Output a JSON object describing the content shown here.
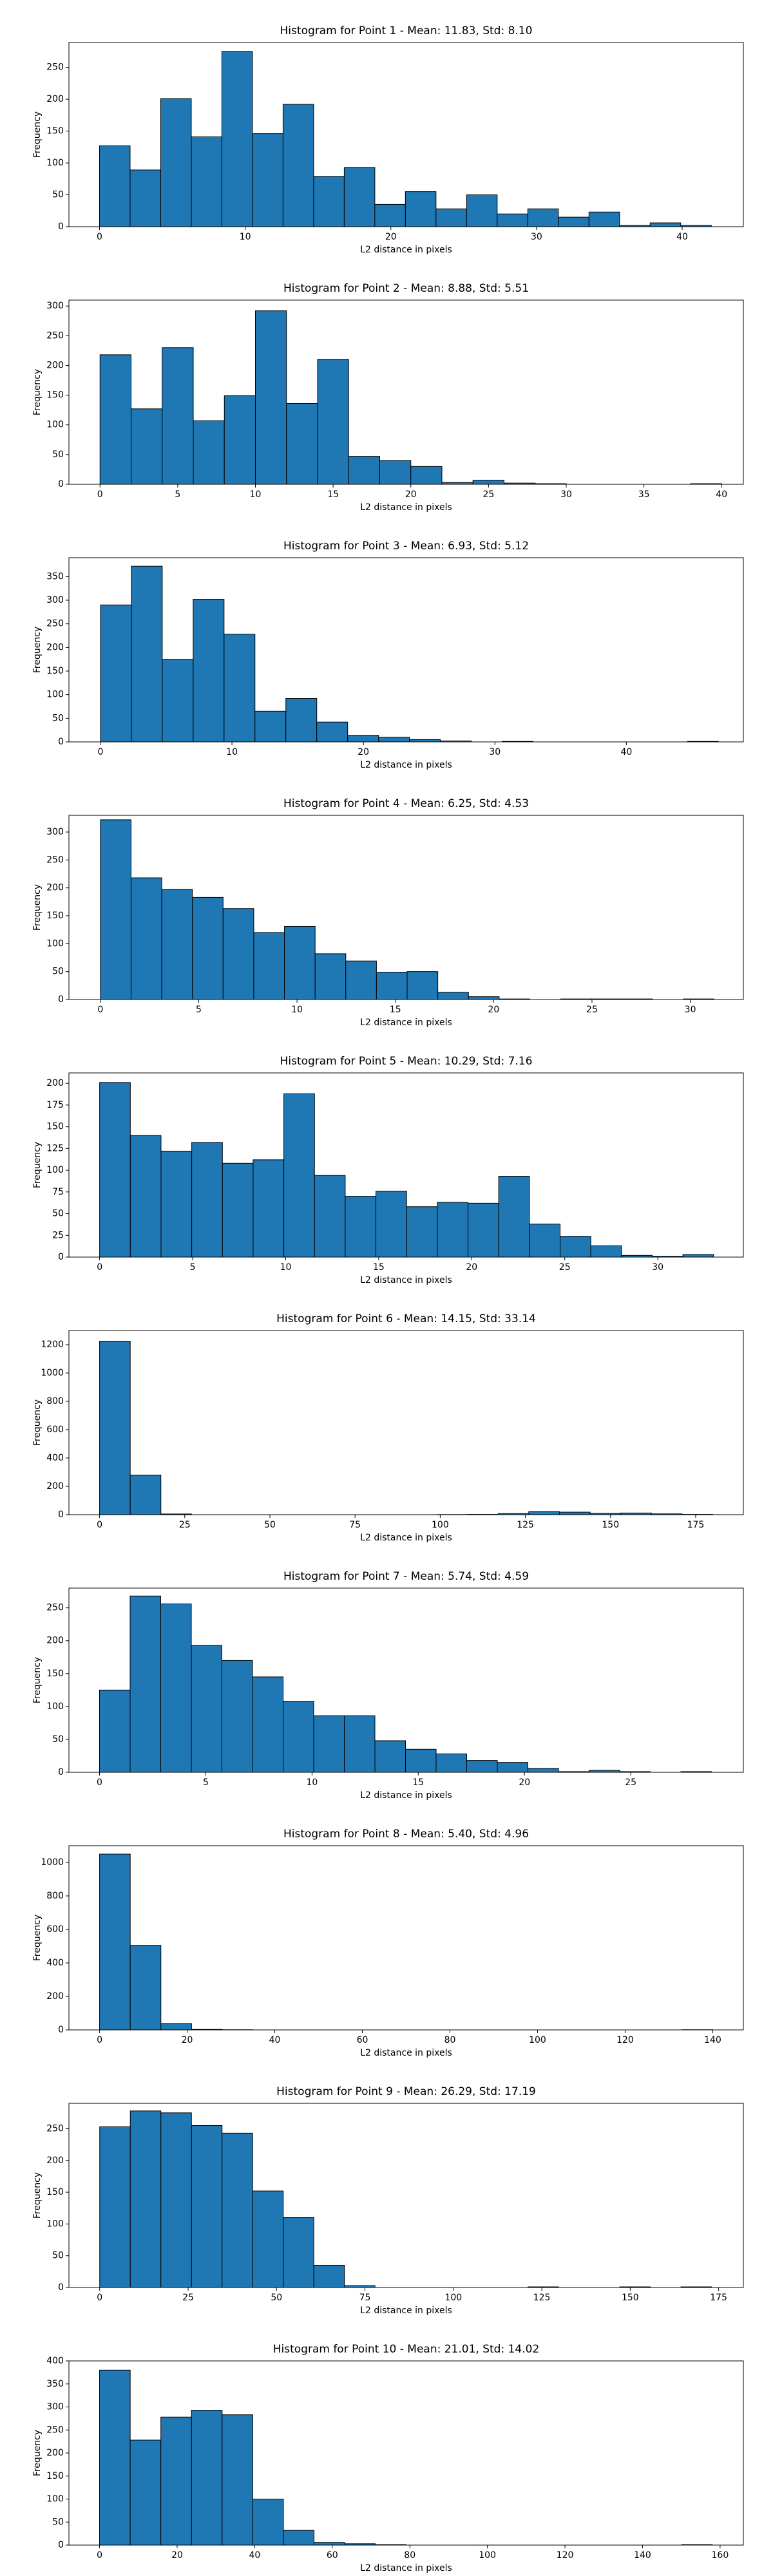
{
  "chart_data": [
    {
      "type": "histogram",
      "title": "Histogram for Point 1 - Mean: 11.83, Std: 8.10",
      "xlabel": "L2 distance in pixels",
      "ylabel": "Frequency",
      "color": "#1f77b4",
      "bins": [
        0,
        2.1,
        4.2,
        6.3,
        8.4,
        10.5,
        12.6,
        14.7,
        16.8,
        18.9,
        21,
        23.1,
        25.2,
        27.3,
        29.4,
        31.5,
        33.6,
        35.7,
        37.8,
        39.9,
        42
      ],
      "values": [
        127,
        89,
        201,
        141,
        275,
        146,
        192,
        79,
        93,
        35,
        55,
        28,
        50,
        20,
        28,
        15,
        23,
        2,
        6,
        2
      ],
      "xlim": [
        -2.1,
        44.2
      ],
      "ylim": [
        0,
        289
      ],
      "xticks": [
        0,
        10,
        20,
        30,
        40
      ],
      "yticks": [
        0,
        50,
        100,
        150,
        200,
        250
      ]
    },
    {
      "type": "histogram",
      "title": "Histogram for Point 2 - Mean: 8.88, Std: 5.51",
      "xlabel": "L2 distance in pixels",
      "ylabel": "Frequency",
      "color": "#1f77b4",
      "bins": [
        0,
        2,
        4,
        6,
        8,
        10,
        12,
        14,
        16,
        18,
        20,
        22,
        24,
        26,
        28,
        30,
        32,
        34,
        36,
        38,
        40
      ],
      "values": [
        218,
        127,
        230,
        107,
        149,
        292,
        136,
        210,
        47,
        40,
        30,
        3,
        7,
        2,
        1,
        0,
        0,
        0,
        0,
        1
      ],
      "xlim": [
        -2,
        41.4
      ],
      "ylim": [
        0,
        310
      ],
      "xticks": [
        0,
        5,
        10,
        15,
        20,
        25,
        30,
        35,
        40
      ],
      "yticks": [
        0,
        50,
        100,
        150,
        200,
        250,
        300
      ]
    },
    {
      "type": "histogram",
      "title": "Histogram for Point 3 - Mean: 6.93, Std: 5.12",
      "xlabel": "L2 distance in pixels",
      "ylabel": "Frequency",
      "color": "#1f77b4",
      "bins": [
        0,
        2.35,
        4.7,
        7.05,
        9.4,
        11.75,
        14.1,
        16.45,
        18.8,
        21.15,
        23.5,
        25.85,
        28.2,
        30.55,
        32.9,
        35.25,
        37.6,
        39.95,
        42.3,
        44.65,
        47
      ],
      "values": [
        290,
        372,
        175,
        302,
        228,
        65,
        92,
        42,
        14,
        10,
        5,
        2,
        0,
        1,
        0,
        0,
        0,
        0,
        0,
        1
      ],
      "xlim": [
        -2.4,
        48.9
      ],
      "ylim": [
        0,
        390
      ],
      "xticks": [
        0,
        10,
        20,
        30,
        40
      ],
      "yticks": [
        0,
        50,
        100,
        150,
        200,
        250,
        300,
        350
      ]
    },
    {
      "type": "histogram",
      "title": "Histogram for Point 4 - Mean: 6.25, Std: 4.53",
      "xlabel": "L2 distance in pixels",
      "ylabel": "Frequency",
      "color": "#1f77b4",
      "bins": [
        0,
        1.56,
        3.12,
        4.68,
        6.24,
        7.8,
        9.36,
        10.92,
        12.48,
        14.04,
        15.6,
        17.16,
        18.72,
        20.28,
        21.84,
        23.4,
        24.96,
        26.52,
        28.08,
        29.64,
        31.2
      ],
      "values": [
        322,
        218,
        197,
        183,
        163,
        120,
        131,
        82,
        69,
        49,
        50,
        13,
        5,
        1,
        0,
        1,
        1,
        1,
        0,
        1
      ],
      "xlim": [
        -1.6,
        32.7
      ],
      "ylim": [
        0,
        330
      ],
      "xticks": [
        0,
        5,
        10,
        15,
        20,
        25,
        30
      ],
      "yticks": [
        0,
        50,
        100,
        150,
        200,
        250,
        300
      ]
    },
    {
      "type": "histogram",
      "title": "Histogram for Point 5 - Mean: 10.29, Std: 7.16",
      "xlabel": "L2 distance in pixels",
      "ylabel": "Frequency",
      "color": "#1f77b4",
      "bins": [
        0,
        1.65,
        3.3,
        4.95,
        6.6,
        8.25,
        9.9,
        11.55,
        13.2,
        14.85,
        16.5,
        18.15,
        19.8,
        21.45,
        23.1,
        24.75,
        26.4,
        28.05,
        29.7,
        31.35,
        33
      ],
      "values": [
        201,
        140,
        122,
        132,
        108,
        112,
        188,
        94,
        70,
        76,
        58,
        63,
        62,
        93,
        38,
        24,
        13,
        2,
        1,
        3
      ],
      "xlim": [
        -1.65,
        34.6
      ],
      "ylim": [
        0,
        212
      ],
      "xticks": [
        0,
        5,
        10,
        15,
        20,
        25,
        30
      ],
      "yticks": [
        0,
        25,
        50,
        75,
        100,
        125,
        150,
        175,
        200
      ]
    },
    {
      "type": "histogram",
      "title": "Histogram for Point 6 - Mean: 14.15, Std: 33.14",
      "xlabel": "L2 distance in pixels",
      "ylabel": "Frequency",
      "color": "#1f77b4",
      "bins": [
        0,
        9,
        18,
        27,
        36,
        45,
        54,
        63,
        72,
        81,
        90,
        99,
        108,
        117,
        126,
        135,
        144,
        153,
        162,
        171,
        180
      ],
      "values": [
        1225,
        280,
        5,
        0,
        0,
        0,
        0,
        0,
        0,
        0,
        0,
        1,
        2,
        8,
        22,
        18,
        10,
        12,
        6,
        2
      ],
      "xlim": [
        -9,
        189
      ],
      "ylim": [
        0,
        1300
      ],
      "xticks": [
        0,
        25,
        50,
        75,
        100,
        125,
        150,
        175
      ],
      "yticks": [
        0,
        200,
        400,
        600,
        800,
        1000,
        1200
      ]
    },
    {
      "type": "histogram",
      "title": "Histogram for Point 7 - Mean: 5.74, Std: 4.59",
      "xlabel": "L2 distance in pixels",
      "ylabel": "Frequency",
      "color": "#1f77b4",
      "bins": [
        0,
        1.44,
        2.88,
        4.32,
        5.76,
        7.2,
        8.64,
        10.08,
        11.52,
        12.96,
        14.4,
        15.84,
        17.28,
        18.72,
        20.16,
        21.6,
        23.04,
        24.48,
        25.92,
        27.36,
        28.8
      ],
      "values": [
        125,
        268,
        256,
        193,
        170,
        145,
        108,
        86,
        86,
        48,
        35,
        28,
        18,
        15,
        6,
        1,
        3,
        1,
        0,
        1
      ],
      "xlim": [
        -1.44,
        30.3
      ],
      "ylim": [
        0,
        280
      ],
      "xticks": [
        0,
        5,
        10,
        15,
        20,
        25
      ],
      "yticks": [
        0,
        50,
        100,
        150,
        200,
        250
      ]
    },
    {
      "type": "histogram",
      "title": "Histogram for Point 8 - Mean: 5.40, Std: 4.96",
      "xlabel": "L2 distance in pixels",
      "ylabel": "Frequency",
      "color": "#1f77b4",
      "bins": [
        0,
        7,
        14,
        21,
        28,
        35,
        42,
        49,
        56,
        63,
        70,
        77,
        84,
        91,
        98,
        105,
        112,
        119,
        126,
        133,
        140
      ],
      "values": [
        1050,
        505,
        38,
        3,
        1,
        0,
        0,
        0,
        0,
        0,
        0,
        0,
        0,
        0,
        0,
        0,
        0,
        0,
        0,
        1
      ],
      "xlim": [
        -7,
        147
      ],
      "ylim": [
        0,
        1100
      ],
      "xticks": [
        0,
        20,
        40,
        60,
        80,
        100,
        120,
        140
      ],
      "yticks": [
        0,
        200,
        400,
        600,
        800,
        1000
      ]
    },
    {
      "type": "histogram",
      "title": "Histogram for Point 9 - Mean: 26.29, Std: 17.19",
      "xlabel": "L2 distance in pixels",
      "ylabel": "Frequency",
      "color": "#1f77b4",
      "bins": [
        0,
        8.65,
        17.3,
        25.95,
        34.6,
        43.25,
        51.9,
        60.55,
        69.2,
        77.85,
        86.5,
        95.15,
        103.8,
        112.45,
        121.1,
        129.75,
        138.4,
        147.05,
        155.7,
        164.35,
        173
      ],
      "values": [
        253,
        278,
        275,
        255,
        243,
        152,
        110,
        35,
        3,
        0,
        0,
        0,
        0,
        0,
        1,
        0,
        0,
        1,
        0,
        1
      ],
      "xlim": [
        -8.7,
        182
      ],
      "ylim": [
        0,
        290
      ],
      "xticks": [
        0,
        25,
        50,
        75,
        100,
        125,
        150,
        175
      ],
      "yticks": [
        0,
        50,
        100,
        150,
        200,
        250
      ]
    },
    {
      "type": "histogram",
      "title": "Histogram for Point 10 - Mean: 21.01, Std: 14.02",
      "xlabel": "L2 distance in pixels",
      "ylabel": "Frequency",
      "color": "#1f77b4",
      "bins": [
        0,
        7.9,
        15.8,
        23.7,
        31.6,
        39.5,
        47.4,
        55.3,
        63.2,
        71.1,
        79,
        86.9,
        94.8,
        102.7,
        110.6,
        118.5,
        126.4,
        134.3,
        142.2,
        150.1,
        158
      ],
      "values": [
        380,
        228,
        278,
        293,
        283,
        100,
        32,
        6,
        3,
        1,
        0,
        0,
        0,
        0,
        0,
        0,
        0,
        0,
        0,
        1
      ],
      "xlim": [
        -7.9,
        166
      ],
      "ylim": [
        0,
        400
      ],
      "xticks": [
        0,
        20,
        40,
        60,
        80,
        100,
        120,
        140,
        160
      ],
      "yticks": [
        0,
        50,
        100,
        150,
        200,
        250,
        300,
        350,
        400
      ]
    }
  ]
}
